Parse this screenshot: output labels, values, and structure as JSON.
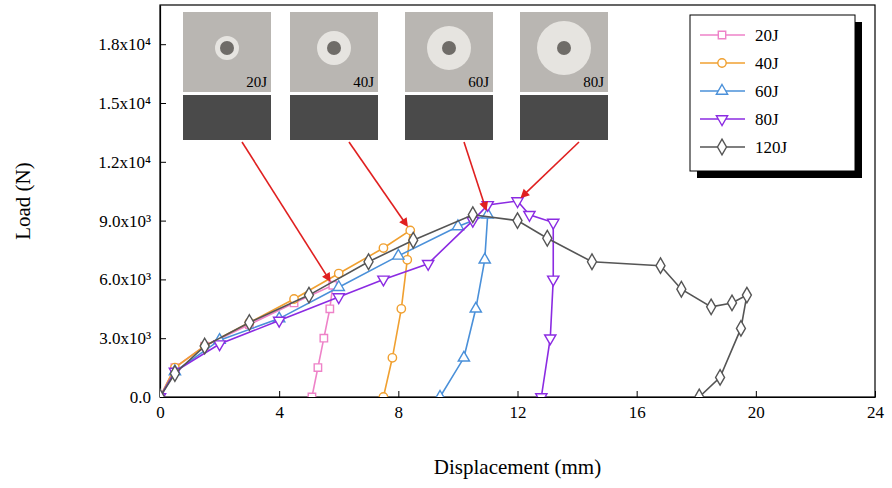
{
  "chart_data": {
    "type": "line",
    "x_label": "Displacement (mm)",
    "y_label": "Load (N)",
    "xlim": [
      0,
      24
    ],
    "xticks": [
      0,
      4,
      8,
      12,
      16,
      20,
      24
    ],
    "ylim": [
      0,
      20000
    ],
    "yticks": [
      {
        "value": 0,
        "label": "0.0"
      },
      {
        "value": 3000,
        "label": "3.0x10³"
      },
      {
        "value": 6000,
        "label": "6.0x10³"
      },
      {
        "value": 9000,
        "label": "9.0x10³"
      },
      {
        "value": 12000,
        "label": "1.2x10⁴"
      },
      {
        "value": 15000,
        "label": "1.5x10⁴"
      },
      {
        "value": 18000,
        "label": "1.8x10⁴"
      }
    ],
    "grid": false,
    "legend": "upper right",
    "annotations": [
      "20J",
      "40J",
      "60J",
      "80J"
    ],
    "series": [
      {
        "name": "20J",
        "color": "#ee82c8",
        "marker": "square",
        "x": [
          0,
          0.5,
          1.5,
          3,
          4.5,
          5.8,
          5.7,
          5.5,
          5.3,
          5.1
        ],
        "values": [
          0,
          1500,
          2600,
          3700,
          4800,
          5700,
          4500,
          3000,
          1500,
          0
        ]
      },
      {
        "name": "40J",
        "color": "#f0a030",
        "marker": "circle",
        "x": [
          0,
          0.5,
          1.5,
          3,
          4.5,
          6,
          7.5,
          8.4,
          8.3,
          8.1,
          7.8,
          7.5
        ],
        "values": [
          0,
          1500,
          2600,
          3800,
          5000,
          6300,
          7600,
          8500,
          7000,
          4500,
          2000,
          0
        ]
      },
      {
        "name": "60J",
        "color": "#4a90d9",
        "marker": "triangle-up",
        "x": [
          0,
          0.5,
          2,
          4,
          6,
          8,
          10,
          11,
          10.9,
          10.6,
          10.2,
          9.4
        ],
        "values": [
          0,
          1300,
          2900,
          4000,
          5600,
          7200,
          8700,
          9300,
          7000,
          4500,
          2000,
          0
        ]
      },
      {
        "name": "80J",
        "color": "#8b2be2",
        "marker": "triangle-down",
        "x": [
          0,
          0.5,
          2,
          4,
          6,
          7.5,
          9,
          10.5,
          11,
          12,
          12.4,
          13.2,
          13.2,
          13.1,
          12.8
        ],
        "values": [
          0,
          1300,
          2700,
          3900,
          5100,
          6000,
          6800,
          9000,
          9800,
          10000,
          9300,
          8900,
          6000,
          3000,
          0
        ]
      },
      {
        "name": "120J",
        "color": "#555555",
        "marker": "diamond",
        "x": [
          0,
          0.5,
          1.5,
          3,
          5,
          7,
          8.5,
          10.5,
          12,
          13,
          14.5,
          16.8,
          17.5,
          18.5,
          19.2,
          19.7,
          19.5,
          18.8,
          18.1
        ],
        "values": [
          0,
          1200,
          2600,
          3800,
          5200,
          6900,
          8000,
          9300,
          9000,
          8100,
          6900,
          6700,
          5500,
          4600,
          4800,
          5200,
          3500,
          1000,
          0
        ]
      }
    ]
  }
}
